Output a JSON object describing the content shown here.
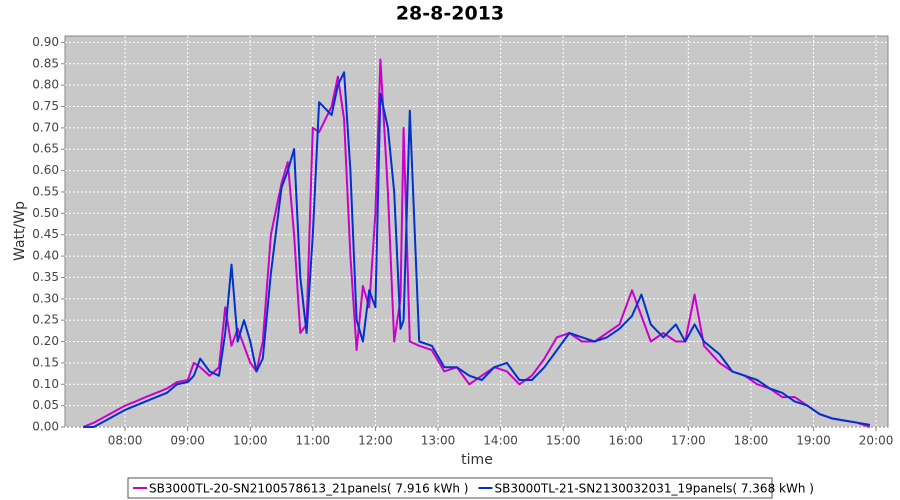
{
  "chart_data": {
    "type": "line",
    "title": "28-8-2013",
    "x_label": "time",
    "y_label": "Watt/Wp",
    "x": [
      7.33,
      7.5,
      7.75,
      8.0,
      8.17,
      8.33,
      8.5,
      8.67,
      8.83,
      9.0,
      9.1,
      9.2,
      9.35,
      9.5,
      9.6,
      9.7,
      9.8,
      9.9,
      10.0,
      10.1,
      10.2,
      10.33,
      10.5,
      10.6,
      10.7,
      10.8,
      10.9,
      11.0,
      11.1,
      11.3,
      11.4,
      11.5,
      11.6,
      11.7,
      11.8,
      11.9,
      12.0,
      12.08,
      12.2,
      12.3,
      12.4,
      12.45,
      12.55,
      12.7,
      12.9,
      13.1,
      13.3,
      13.5,
      13.7,
      13.9,
      14.1,
      14.3,
      14.5,
      14.7,
      14.9,
      15.1,
      15.3,
      15.5,
      15.7,
      15.9,
      16.1,
      16.25,
      16.4,
      16.6,
      16.8,
      16.95,
      17.1,
      17.25,
      17.5,
      17.7,
      17.9,
      18.1,
      18.3,
      18.5,
      18.7,
      18.9,
      19.1,
      19.3,
      19.5,
      19.7,
      19.9
    ],
    "series": [
      {
        "name": "SB3000TL-20-SN2100578613_21panels( 7.916 kWh )",
        "color": "#cc00cc",
        "values": [
          0,
          0.01,
          0.03,
          0.05,
          0.06,
          0.07,
          0.08,
          0.09,
          0.105,
          0.11,
          0.15,
          0.14,
          0.12,
          0.14,
          0.28,
          0.19,
          0.23,
          0.19,
          0.15,
          0.13,
          0.2,
          0.45,
          0.57,
          0.62,
          0.45,
          0.22,
          0.24,
          0.7,
          0.69,
          0.75,
          0.82,
          0.72,
          0.4,
          0.18,
          0.33,
          0.28,
          0.5,
          0.86,
          0.55,
          0.2,
          0.3,
          0.7,
          0.2,
          0.19,
          0.18,
          0.13,
          0.14,
          0.1,
          0.12,
          0.14,
          0.13,
          0.1,
          0.12,
          0.16,
          0.21,
          0.22,
          0.2,
          0.2,
          0.22,
          0.24,
          0.32,
          0.26,
          0.2,
          0.22,
          0.2,
          0.2,
          0.31,
          0.19,
          0.15,
          0.13,
          0.12,
          0.1,
          0.09,
          0.07,
          0.07,
          0.05,
          0.03,
          0.02,
          0.015,
          0.01,
          0
        ]
      },
      {
        "name": "SB3000TL-21-SN2130032031_19panels( 7.368 kWh )",
        "color": "#0033cc",
        "values": [
          0,
          0,
          0.02,
          0.04,
          0.05,
          0.06,
          0.07,
          0.08,
          0.1,
          0.105,
          0.12,
          0.16,
          0.13,
          0.12,
          0.22,
          0.38,
          0.2,
          0.25,
          0.2,
          0.13,
          0.16,
          0.36,
          0.56,
          0.6,
          0.65,
          0.35,
          0.22,
          0.45,
          0.76,
          0.73,
          0.8,
          0.83,
          0.6,
          0.25,
          0.2,
          0.32,
          0.28,
          0.78,
          0.7,
          0.55,
          0.23,
          0.25,
          0.74,
          0.2,
          0.19,
          0.14,
          0.14,
          0.12,
          0.11,
          0.14,
          0.15,
          0.11,
          0.11,
          0.14,
          0.18,
          0.22,
          0.21,
          0.2,
          0.21,
          0.23,
          0.26,
          0.31,
          0.24,
          0.21,
          0.24,
          0.2,
          0.24,
          0.2,
          0.17,
          0.13,
          0.12,
          0.11,
          0.09,
          0.08,
          0.06,
          0.05,
          0.03,
          0.02,
          0.015,
          0.01,
          0.005
        ]
      }
    ],
    "xlim": [
      7.04,
      20.19
    ],
    "xticks": [
      {
        "value": 8,
        "label": "08:00"
      },
      {
        "value": 9,
        "label": "09:00"
      },
      {
        "value": 10,
        "label": "10:00"
      },
      {
        "value": 11,
        "label": "11:00"
      },
      {
        "value": 12,
        "label": "12:00"
      },
      {
        "value": 13,
        "label": "13:00"
      },
      {
        "value": 14,
        "label": "14:00"
      },
      {
        "value": 15,
        "label": "15:00"
      },
      {
        "value": 16,
        "label": "16:00"
      },
      {
        "value": 17,
        "label": "17:00"
      },
      {
        "value": 18,
        "label": "18:00"
      },
      {
        "value": 19,
        "label": "19:00"
      },
      {
        "value": 20,
        "label": "20:00"
      }
    ],
    "ylim": [
      0,
      0.915
    ],
    "yticks": [
      {
        "value": 0,
        "label": "0.00"
      },
      {
        "value": 0.05,
        "label": "0.05"
      },
      {
        "value": 0.1,
        "label": "0.10"
      },
      {
        "value": 0.15,
        "label": "0.15"
      },
      {
        "value": 0.2,
        "label": "0.20"
      },
      {
        "value": 0.25,
        "label": "0.25"
      },
      {
        "value": 0.3,
        "label": "0.30"
      },
      {
        "value": 0.35,
        "label": "0.35"
      },
      {
        "value": 0.4,
        "label": "0.40"
      },
      {
        "value": 0.45,
        "label": "0.45"
      },
      {
        "value": 0.5,
        "label": "0.50"
      },
      {
        "value": 0.55,
        "label": "0.55"
      },
      {
        "value": 0.6,
        "label": "0.60"
      },
      {
        "value": 0.65,
        "label": "0.65"
      },
      {
        "value": 0.7,
        "label": "0.70"
      },
      {
        "value": 0.75,
        "label": "0.75"
      },
      {
        "value": 0.8,
        "label": "0.80"
      },
      {
        "value": 0.85,
        "label": "0.85"
      },
      {
        "value": 0.9,
        "label": "0.90"
      }
    ],
    "grid": true,
    "legend": "bottom"
  }
}
